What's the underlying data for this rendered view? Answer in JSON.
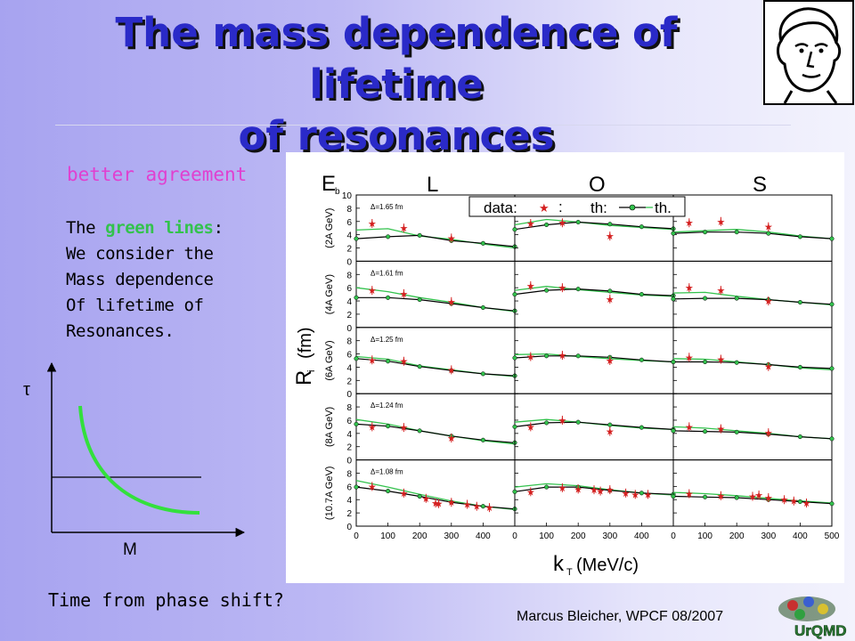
{
  "slide": {
    "title_line1": "The mass dependence of lifetime",
    "title_line2": "of resonances",
    "better_agreement": "better agreement",
    "green_text": {
      "prefix": "The ",
      "highlight": "green lines",
      "suffix": ":",
      "lines": [
        "We consider the",
        "Mass dependence",
        "Of lifetime of",
        "Resonances."
      ]
    },
    "sketch": {
      "y_label": "τ",
      "x_label": "M"
    },
    "question": "Time from phase shift?",
    "credit": "Marcus Bleicher, WPCF 08/2007",
    "logo_text": "UrQMD",
    "colors": {
      "title": "#2a2ac8",
      "pink": "#e040d0",
      "green": "#33c24d",
      "data_red": "#d42020"
    }
  },
  "chart_data": {
    "type": "scatter",
    "column_titles": [
      "L",
      "O",
      "S"
    ],
    "panel_label": "E",
    "panel_label_sub": "b",
    "ylabel": "R",
    "ylabel_sub": "i",
    "ylabel_unit": "(fm)",
    "xlabel": "k",
    "xlabel_sub": "T",
    "xlabel_unit": "(MeV/c)",
    "legend": {
      "data": "data:",
      "sep": ":",
      "th1": "th:",
      "th2": "th."
    },
    "rows": [
      {
        "energy": "(2A GeV)",
        "delta": "Δ=1.65 fm"
      },
      {
        "energy": "(4A GeV)",
        "delta": "Δ=1.61 fm"
      },
      {
        "energy": "(6A GeV)",
        "delta": "Δ=1.25 fm"
      },
      {
        "energy": "(8A GeV)",
        "delta": "Δ=1.24 fm"
      },
      {
        "energy": "(10.7A GeV)",
        "delta": "Δ=1.08 fm"
      }
    ],
    "yticks": [
      0,
      2,
      4,
      6,
      8,
      10
    ],
    "ylim": [
      0,
      10
    ],
    "xticks_first": [
      0,
      100,
      200,
      300,
      400
    ],
    "xticks_mid": [
      0,
      100,
      200,
      300,
      400
    ],
    "xticks_last": [
      0,
      100,
      200,
      300,
      400,
      500
    ],
    "xlim": [
      0,
      500
    ],
    "panels": [
      [
        {
          "data": [
            [
              50,
              5.7
            ],
            [
              150,
              5.0
            ],
            [
              300,
              3.5
            ]
          ],
          "black": [
            [
              0,
              3.4
            ],
            [
              100,
              3.7
            ],
            [
              200,
              3.9
            ],
            [
              300,
              3.1
            ],
            [
              400,
              2.7
            ],
            [
              500,
              2.2
            ]
          ],
          "green": [
            [
              0,
              4.7
            ],
            [
              100,
              4.9
            ],
            [
              200,
              3.8
            ],
            [
              300,
              3.3
            ],
            [
              400,
              2.6
            ],
            [
              500,
              2.0
            ]
          ]
        },
        {
          "data": [
            [
              50,
              5.7
            ],
            [
              150,
              5.8
            ],
            [
              300,
              3.8
            ]
          ],
          "black": [
            [
              0,
              4.8
            ],
            [
              100,
              5.5
            ],
            [
              200,
              5.9
            ],
            [
              300,
              5.6
            ],
            [
              400,
              5.2
            ],
            [
              500,
              4.9
            ]
          ],
          "green": [
            [
              0,
              5.5
            ],
            [
              100,
              6.3
            ],
            [
              200,
              5.9
            ],
            [
              300,
              5.4
            ],
            [
              400,
              5.1
            ],
            [
              500,
              4.8
            ]
          ]
        },
        {
          "data": [
            [
              50,
              5.8
            ],
            [
              150,
              6.0
            ],
            [
              300,
              5.2
            ]
          ],
          "black": [
            [
              0,
              4.2
            ],
            [
              100,
              4.4
            ],
            [
              200,
              4.4
            ],
            [
              300,
              4.2
            ],
            [
              400,
              3.7
            ],
            [
              500,
              3.4
            ]
          ],
          "green": [
            [
              0,
              4.4
            ],
            [
              100,
              4.6
            ],
            [
              200,
              4.8
            ],
            [
              300,
              4.4
            ],
            [
              400,
              3.8
            ],
            [
              500,
              3.4
            ]
          ]
        }
      ],
      [
        {
          "data": [
            [
              50,
              5.6
            ],
            [
              150,
              5.1
            ],
            [
              300,
              3.9
            ]
          ],
          "black": [
            [
              0,
              4.5
            ],
            [
              100,
              4.5
            ],
            [
              200,
              4.2
            ],
            [
              300,
              3.6
            ],
            [
              400,
              3.0
            ],
            [
              500,
              2.5
            ]
          ],
          "green": [
            [
              0,
              6.0
            ],
            [
              100,
              5.4
            ],
            [
              200,
              4.5
            ],
            [
              300,
              3.8
            ],
            [
              400,
              3.0
            ],
            [
              500,
              2.4
            ]
          ]
        },
        {
          "data": [
            [
              50,
              6.3
            ],
            [
              150,
              6.0
            ],
            [
              300,
              4.3
            ]
          ],
          "black": [
            [
              0,
              5.0
            ],
            [
              100,
              5.6
            ],
            [
              200,
              5.8
            ],
            [
              300,
              5.5
            ],
            [
              400,
              5.0
            ],
            [
              500,
              4.8
            ]
          ],
          "green": [
            [
              0,
              5.6
            ],
            [
              100,
              6.2
            ],
            [
              200,
              5.7
            ],
            [
              300,
              5.3
            ],
            [
              400,
              4.9
            ],
            [
              500,
              4.7
            ]
          ]
        },
        {
          "data": [
            [
              50,
              6.0
            ],
            [
              150,
              5.6
            ],
            [
              300,
              4.0
            ]
          ],
          "black": [
            [
              0,
              4.3
            ],
            [
              100,
              4.4
            ],
            [
              200,
              4.4
            ],
            [
              300,
              4.2
            ],
            [
              400,
              3.8
            ],
            [
              500,
              3.5
            ]
          ],
          "green": [
            [
              0,
              5.2
            ],
            [
              100,
              5.3
            ],
            [
              200,
              4.7
            ],
            [
              300,
              4.2
            ],
            [
              400,
              3.8
            ],
            [
              500,
              3.4
            ]
          ]
        }
      ],
      [
        {
          "data": [
            [
              50,
              5.1
            ],
            [
              150,
              4.9
            ],
            [
              300,
              3.6
            ]
          ],
          "black": [
            [
              0,
              5.3
            ],
            [
              100,
              4.9
            ],
            [
              200,
              4.1
            ],
            [
              300,
              3.5
            ],
            [
              400,
              3.0
            ],
            [
              500,
              2.7
            ]
          ],
          "green": [
            [
              0,
              5.6
            ],
            [
              100,
              5.2
            ],
            [
              200,
              4.2
            ],
            [
              300,
              3.6
            ],
            [
              400,
              3.0
            ],
            [
              500,
              2.6
            ]
          ]
        },
        {
          "data": [
            [
              50,
              5.6
            ],
            [
              150,
              5.8
            ],
            [
              300,
              5.0
            ]
          ],
          "black": [
            [
              0,
              5.4
            ],
            [
              100,
              5.7
            ],
            [
              200,
              5.7
            ],
            [
              300,
              5.5
            ],
            [
              400,
              5.1
            ],
            [
              500,
              4.8
            ]
          ],
          "green": [
            [
              0,
              5.9
            ],
            [
              100,
              6.0
            ],
            [
              200,
              5.6
            ],
            [
              300,
              5.3
            ],
            [
              400,
              5.0
            ],
            [
              500,
              4.8
            ]
          ]
        },
        {
          "data": [
            [
              50,
              5.5
            ],
            [
              150,
              5.2
            ],
            [
              300,
              4.1
            ]
          ],
          "black": [
            [
              0,
              4.8
            ],
            [
              100,
              4.8
            ],
            [
              200,
              4.7
            ],
            [
              300,
              4.4
            ],
            [
              400,
              4.0
            ],
            [
              500,
              3.8
            ]
          ],
          "green": [
            [
              0,
              5.3
            ],
            [
              100,
              5.2
            ],
            [
              200,
              4.8
            ],
            [
              300,
              4.4
            ],
            [
              400,
              3.9
            ],
            [
              500,
              3.6
            ]
          ]
        }
      ],
      [
        {
          "data": [
            [
              50,
              5.0
            ],
            [
              150,
              4.9
            ],
            [
              300,
              3.3
            ]
          ],
          "black": [
            [
              0,
              5.4
            ],
            [
              100,
              5.1
            ],
            [
              200,
              4.4
            ],
            [
              300,
              3.6
            ],
            [
              400,
              3.0
            ],
            [
              500,
              2.6
            ]
          ],
          "green": [
            [
              0,
              6.1
            ],
            [
              100,
              5.4
            ],
            [
              200,
              4.4
            ],
            [
              300,
              3.6
            ],
            [
              400,
              2.9
            ],
            [
              500,
              2.4
            ]
          ]
        },
        {
          "data": [
            [
              50,
              5.0
            ],
            [
              150,
              6.0
            ],
            [
              300,
              4.3
            ]
          ],
          "black": [
            [
              0,
              5.0
            ],
            [
              100,
              5.6
            ],
            [
              200,
              5.7
            ],
            [
              300,
              5.3
            ],
            [
              400,
              4.9
            ],
            [
              500,
              4.6
            ]
          ],
          "green": [
            [
              0,
              5.7
            ],
            [
              100,
              6.1
            ],
            [
              200,
              5.7
            ],
            [
              300,
              5.2
            ],
            [
              400,
              4.8
            ],
            [
              500,
              4.6
            ]
          ]
        },
        {
          "data": [
            [
              50,
              5.0
            ],
            [
              150,
              4.7
            ],
            [
              300,
              4.1
            ]
          ],
          "black": [
            [
              0,
              4.4
            ],
            [
              100,
              4.3
            ],
            [
              200,
              4.2
            ],
            [
              300,
              3.9
            ],
            [
              400,
              3.5
            ],
            [
              500,
              3.2
            ]
          ],
          "green": [
            [
              0,
              5.0
            ],
            [
              100,
              4.8
            ],
            [
              200,
              4.4
            ],
            [
              300,
              4.0
            ],
            [
              400,
              3.5
            ],
            [
              500,
              3.2
            ]
          ]
        }
      ],
      [
        {
          "data": [
            [
              50,
              6.0
            ],
            [
              150,
              5.0
            ],
            [
              220,
              4.2
            ],
            [
              250,
              3.5
            ],
            [
              260,
              3.4
            ],
            [
              300,
              3.6
            ],
            [
              350,
              3.3
            ],
            [
              380,
              3.0
            ],
            [
              420,
              2.8
            ]
          ],
          "black": [
            [
              0,
              5.9
            ],
            [
              100,
              5.3
            ],
            [
              200,
              4.5
            ],
            [
              300,
              3.6
            ],
            [
              400,
              3.0
            ],
            [
              500,
              2.6
            ]
          ],
          "green": [
            [
              0,
              6.9
            ],
            [
              100,
              5.9
            ],
            [
              200,
              4.8
            ],
            [
              300,
              3.8
            ],
            [
              400,
              3.0
            ],
            [
              500,
              2.5
            ]
          ]
        },
        {
          "data": [
            [
              50,
              5.2
            ],
            [
              150,
              5.8
            ],
            [
              200,
              5.6
            ],
            [
              250,
              5.5
            ],
            [
              270,
              5.3
            ],
            [
              300,
              5.5
            ],
            [
              350,
              5.0
            ],
            [
              380,
              4.8
            ],
            [
              420,
              4.8
            ]
          ],
          "black": [
            [
              0,
              5.2
            ],
            [
              100,
              5.9
            ],
            [
              200,
              5.9
            ],
            [
              300,
              5.4
            ],
            [
              400,
              5.0
            ],
            [
              500,
              4.8
            ]
          ],
          "green": [
            [
              0,
              5.9
            ],
            [
              100,
              6.4
            ],
            [
              200,
              6.1
            ],
            [
              300,
              5.5
            ],
            [
              400,
              5.0
            ],
            [
              500,
              4.7
            ]
          ]
        },
        {
          "data": [
            [
              50,
              4.9
            ],
            [
              150,
              4.6
            ],
            [
              250,
              4.5
            ],
            [
              270,
              4.7
            ],
            [
              300,
              4.3
            ],
            [
              350,
              4.0
            ],
            [
              380,
              3.8
            ],
            [
              420,
              3.5
            ]
          ],
          "black": [
            [
              0,
              4.5
            ],
            [
              100,
              4.4
            ],
            [
              200,
              4.3
            ],
            [
              300,
              4.0
            ],
            [
              400,
              3.7
            ],
            [
              500,
              3.4
            ]
          ],
          "green": [
            [
              0,
              5.1
            ],
            [
              100,
              4.9
            ],
            [
              200,
              4.6
            ],
            [
              300,
              4.2
            ],
            [
              400,
              3.8
            ],
            [
              500,
              3.5
            ]
          ]
        }
      ]
    ]
  }
}
